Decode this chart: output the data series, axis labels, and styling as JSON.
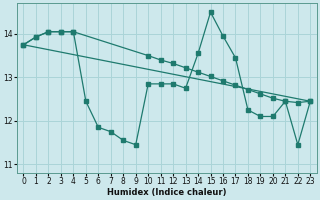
{
  "xlabel": "Humidex (Indice chaleur)",
  "xlim": [
    -0.5,
    23.5
  ],
  "ylim": [
    10.8,
    14.7
  ],
  "yticks": [
    11,
    12,
    13,
    14
  ],
  "xticks": [
    0,
    1,
    2,
    3,
    4,
    5,
    6,
    7,
    8,
    9,
    10,
    11,
    12,
    13,
    14,
    15,
    16,
    17,
    18,
    19,
    20,
    21,
    22,
    23
  ],
  "bg_color": "#cde8ec",
  "grid_color": "#aad4d8",
  "line_color": "#1e7a6e",
  "series1_x": [
    0,
    1,
    2,
    3,
    4,
    5,
    6,
    7,
    8,
    9,
    10,
    11,
    12,
    13,
    14,
    15,
    16,
    17,
    18,
    19,
    20,
    21,
    22,
    23
  ],
  "series1_y": [
    13.75,
    13.93,
    14.05,
    14.05,
    14.05,
    12.45,
    11.85,
    11.75,
    11.55,
    11.45,
    12.85,
    12.85,
    12.85,
    12.75,
    13.55,
    14.5,
    13.95,
    13.45,
    12.25,
    12.1,
    12.1,
    12.45,
    11.45,
    12.45
  ],
  "series2_x": [
    0,
    1,
    2,
    3,
    4,
    10,
    11,
    12,
    13,
    14,
    15,
    16,
    17,
    18,
    19,
    20,
    21,
    22,
    23
  ],
  "series2_y": [
    13.75,
    13.93,
    14.05,
    14.05,
    14.05,
    13.5,
    13.4,
    13.32,
    13.22,
    13.12,
    13.02,
    12.92,
    12.82,
    12.72,
    12.62,
    12.52,
    12.45,
    12.42,
    12.45
  ],
  "series3_x": [
    0,
    23
  ],
  "series3_y": [
    13.75,
    12.45
  ]
}
